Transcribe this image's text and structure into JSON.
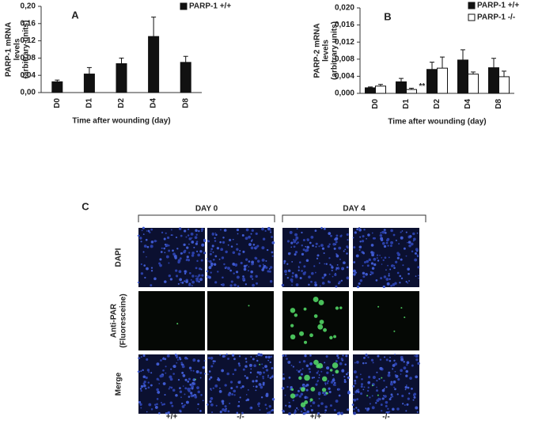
{
  "chart_data": [
    {
      "type": "bar",
      "panel": "A",
      "ylabel": [
        "PARP-1 mRNA",
        "levels",
        "(arbitrary units)"
      ],
      "xlabel": "Time after wounding (day)",
      "categories": [
        "D0",
        "D1",
        "D2",
        "D4",
        "D8"
      ],
      "series": [
        {
          "name": "PARP-1 +/+",
          "color": "#111111",
          "values": [
            0.025,
            0.043,
            0.067,
            0.13,
            0.07
          ],
          "errors": [
            0.004,
            0.015,
            0.013,
            0.045,
            0.014
          ]
        }
      ],
      "ylim": [
        0,
        0.2
      ],
      "yticks": [
        {
          "value": 0,
          "label": "0,00"
        },
        {
          "value": 0.04,
          "label": "0,04"
        },
        {
          "value": 0.08,
          "label": "0,08"
        },
        {
          "value": 0.12,
          "label": "0,12"
        },
        {
          "value": 0.16,
          "label": "0,16"
        },
        {
          "value": 0.2,
          "label": "0,20"
        }
      ]
    },
    {
      "type": "bar",
      "panel": "B",
      "ylabel": [
        "PARP-2 mRNA",
        "levels",
        "(arbitrary units)"
      ],
      "xlabel": "Time after wounding (day)",
      "categories": [
        "D0",
        "D1",
        "D2",
        "D4",
        "D8"
      ],
      "series": [
        {
          "name": "PARP-1 +/+",
          "color": "#111111",
          "values": [
            0.0013,
            0.0027,
            0.0056,
            0.0078,
            0.006
          ],
          "errors": [
            0.0002,
            0.0008,
            0.0017,
            0.0024,
            0.0022
          ]
        },
        {
          "name": "PARP-1 -/-",
          "color": "#ffffff",
          "values": [
            0.0017,
            0.0009,
            0.0059,
            0.0045,
            0.0039
          ],
          "errors": [
            0.0004,
            0.0003,
            0.0026,
            0.0005,
            0.0013
          ]
        }
      ],
      "annotation": "**",
      "ylim": [
        0,
        0.02
      ],
      "yticks": [
        {
          "value": 0,
          "label": "0,000"
        },
        {
          "value": 0.004,
          "label": "0,004"
        },
        {
          "value": 0.008,
          "label": "0,008"
        },
        {
          "value": 0.012,
          "label": "0,012"
        },
        {
          "value": 0.016,
          "label": "0,016"
        },
        {
          "value": 0.02,
          "label": "0,020"
        }
      ]
    }
  ],
  "panel_c": {
    "panel": "C",
    "groups": [
      "DAY 0",
      "DAY 4"
    ],
    "rows": [
      [
        "DAPI"
      ],
      [
        "Anti-PAR",
        "(Fluoresceine)"
      ],
      [
        "Merge"
      ]
    ],
    "columns": [
      "+/+",
      "-/-",
      "+/+",
      "-/-"
    ]
  }
}
